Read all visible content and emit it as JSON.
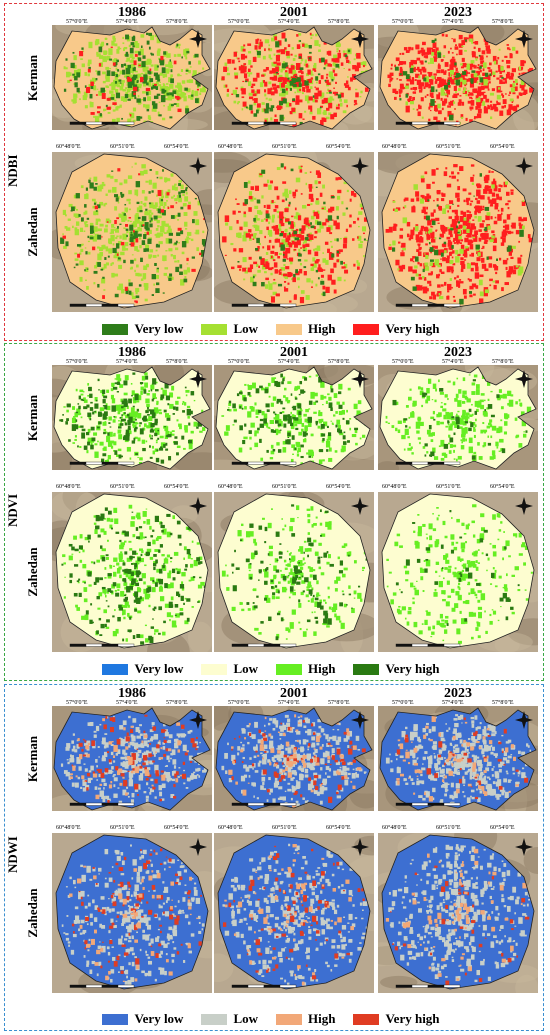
{
  "years": [
    "1986",
    "2001",
    "2023"
  ],
  "cities": {
    "kerman": "Kerman",
    "zahedan": "Zahedan"
  },
  "coords": {
    "kerman_top": [
      "57°0'0\"E",
      "57°4'0\"E",
      "57°8'0\"E"
    ],
    "kerman_lat": [
      "30°18'0\"N",
      "30°15'0\"N"
    ],
    "zahedan_top": [
      "60°48'0\"E",
      "60°51'0\"E",
      "60°54'0\"E"
    ],
    "zahedan_lat": [
      "29°31'30\"N",
      "29°28'0\"N"
    ]
  },
  "panels": [
    {
      "index": "NDBI",
      "border_color": "#e0393e",
      "legend": [
        {
          "label": "Very low",
          "color": "#2e7d1a"
        },
        {
          "label": "Low",
          "color": "#a5e032"
        },
        {
          "label": "High",
          "color": "#f8c98a"
        },
        {
          "label": "Very high",
          "color": "#ff1e1e"
        }
      ],
      "base": "#f8c98a",
      "mix": [
        [
          [
            "#a5e032",
            0.55
          ],
          [
            "#2e7d1a",
            0.2
          ],
          [
            "#ff1e1e",
            0.05
          ]
        ],
        [
          [
            "#a5e032",
            0.3
          ],
          [
            "#ff1e1e",
            0.35
          ],
          [
            "#2e7d1a",
            0.08
          ]
        ],
        [
          [
            "#ff1e1e",
            0.7
          ],
          [
            "#a5e032",
            0.1
          ],
          [
            "#2e7d1a",
            0.05
          ]
        ]
      ]
    },
    {
      "index": "NDVI",
      "border_color": "#3aa845",
      "legend": [
        {
          "label": "Very low",
          "color": "#1f78e0"
        },
        {
          "label": "Low",
          "color": "#fdfdd0"
        },
        {
          "label": "High",
          "color": "#66ee22"
        },
        {
          "label": "Very high",
          "color": "#2a7a12"
        }
      ],
      "base": "#fdfdd0",
      "mix": [
        [
          [
            "#66ee22",
            0.35
          ],
          [
            "#2a7a12",
            0.25
          ]
        ],
        [
          [
            "#66ee22",
            0.3
          ],
          [
            "#2a7a12",
            0.15
          ]
        ],
        [
          [
            "#66ee22",
            0.35
          ],
          [
            "#2a7a12",
            0.05
          ]
        ]
      ]
    },
    {
      "index": "NDWI",
      "border_color": "#3a8fd0",
      "legend": [
        {
          "label": "Very low",
          "color": "#3d6fd1"
        },
        {
          "label": "Low",
          "color": "#c8cfc8"
        },
        {
          "label": "High",
          "color": "#f2a878"
        },
        {
          "label": "Very high",
          "color": "#e03c22"
        }
      ],
      "base": "#3d6fd1",
      "mix": [
        [
          [
            "#c8cfc8",
            0.45
          ],
          [
            "#e03c22",
            0.12
          ],
          [
            "#f2a878",
            0.08
          ]
        ],
        [
          [
            "#c8cfc8",
            0.5
          ],
          [
            "#e03c22",
            0.1
          ],
          [
            "#f2a878",
            0.1
          ]
        ],
        [
          [
            "#c8cfc8",
            0.6
          ],
          [
            "#e03c22",
            0.05
          ],
          [
            "#f2a878",
            0.1
          ]
        ]
      ]
    }
  ]
}
